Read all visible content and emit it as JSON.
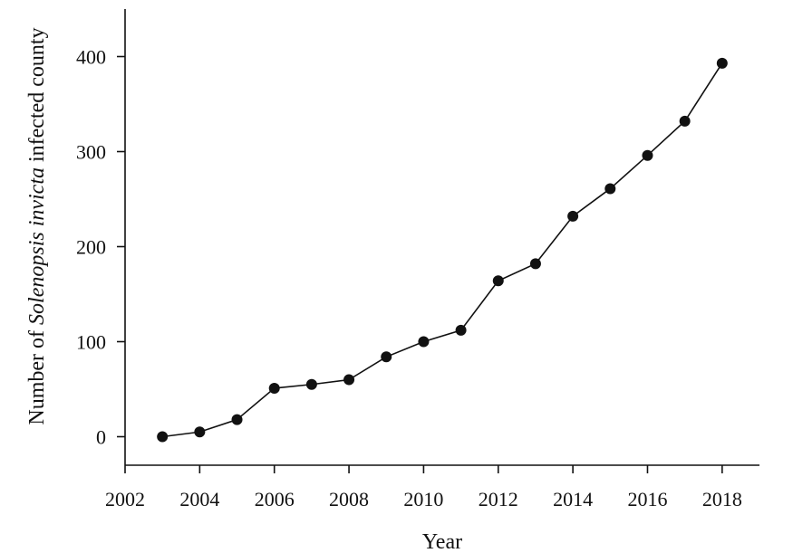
{
  "chart_data": {
    "type": "line",
    "title": "",
    "xlabel": "Year",
    "ylabel_parts": {
      "before": "Number of ",
      "italic": "Solenopsis invicta",
      "after": " infected county"
    },
    "xlim": [
      2002,
      2019
    ],
    "ylim": [
      -30,
      450
    ],
    "x_ticks": [
      2002,
      2004,
      2006,
      2008,
      2010,
      2012,
      2014,
      2016,
      2018
    ],
    "y_ticks": [
      0,
      100,
      200,
      300,
      400
    ],
    "grid": false,
    "legend": "none",
    "series": [
      {
        "marker": "filled-circle",
        "color": "#111111",
        "x": [
          2003,
          2004,
          2005,
          2006,
          2007,
          2008,
          2009,
          2010,
          2011,
          2012,
          2013,
          2014,
          2015,
          2016,
          2017,
          2018
        ],
        "y": [
          0,
          5,
          18,
          51,
          55,
          60,
          84,
          100,
          112,
          164,
          182,
          232,
          261,
          296,
          332,
          393
        ]
      }
    ]
  }
}
